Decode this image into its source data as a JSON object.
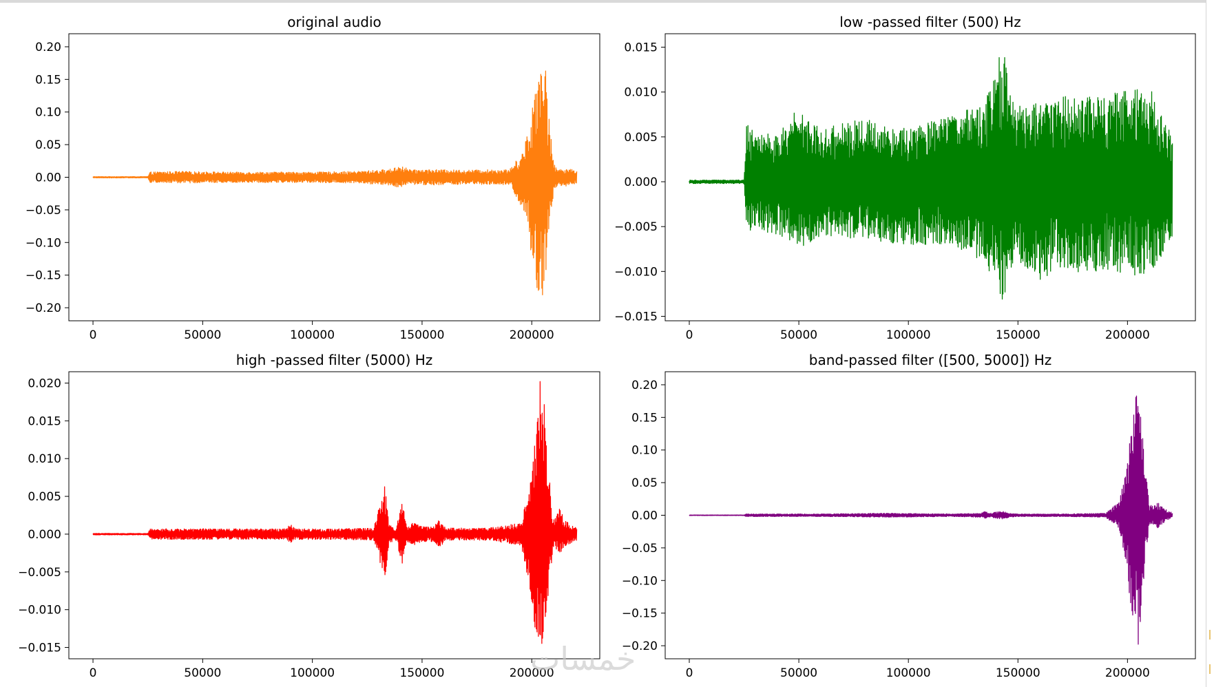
{
  "watermark": "خمسات",
  "chart_data": [
    {
      "type": "line",
      "title": "original audio",
      "color": "#ff7f0e",
      "xlim": [
        -11000,
        231000
      ],
      "ylim": [
        -0.22,
        0.22
      ],
      "xticks": [
        0,
        50000,
        100000,
        150000,
        200000
      ],
      "yticks": [
        -0.2,
        -0.15,
        -0.1,
        -0.05,
        0.0,
        0.05,
        0.1,
        0.15,
        0.2
      ],
      "ytick_labels": [
        "−0.20",
        "−0.15",
        "−0.10",
        "−0.05",
        "0.00",
        "0.05",
        "0.10",
        "0.15",
        "0.20"
      ],
      "series": [
        {
          "x": [
            0,
            25000,
            26000,
            40000,
            60000,
            80000,
            100000,
            120000,
            135000,
            140000,
            143000,
            146000,
            150000,
            170000,
            190000,
            196000,
            199000,
            202000,
            204000,
            205000,
            206000,
            208000,
            210000,
            212000,
            215000,
            218000,
            220500
          ],
          "ymax": [
            0.001,
            0.001,
            0.008,
            0.009,
            0.008,
            0.008,
            0.008,
            0.009,
            0.012,
            0.018,
            0.014,
            0.011,
            0.012,
            0.011,
            0.012,
            0.04,
            0.08,
            0.15,
            0.19,
            0.2,
            0.18,
            0.09,
            0.02,
            0.012,
            0.014,
            0.012,
            0.01
          ],
          "ymin": [
            -0.001,
            -0.001,
            -0.008,
            -0.009,
            -0.008,
            -0.008,
            -0.008,
            -0.009,
            -0.012,
            -0.016,
            -0.012,
            -0.011,
            -0.012,
            -0.011,
            -0.012,
            -0.05,
            -0.1,
            -0.18,
            -0.2,
            -0.21,
            -0.18,
            -0.09,
            -0.02,
            -0.012,
            -0.014,
            -0.012,
            -0.01
          ]
        }
      ]
    },
    {
      "type": "line",
      "title": "low -passed filter (500) Hz",
      "color": "#008000",
      "xlim": [
        -11000,
        231000
      ],
      "ylim": [
        -0.0155,
        0.0165
      ],
      "xticks": [
        0,
        50000,
        100000,
        150000,
        200000
      ],
      "yticks": [
        -0.015,
        -0.01,
        -0.005,
        0.0,
        0.005,
        0.01,
        0.015
      ],
      "ytick_labels": [
        "−0.015",
        "−0.010",
        "−0.005",
        "0.000",
        "0.005",
        "0.010",
        "0.015"
      ],
      "series": [
        {
          "x": [
            0,
            25000,
            26000,
            40000,
            50000,
            60000,
            80000,
            100000,
            120000,
            135000,
            140000,
            143000,
            146000,
            150000,
            160000,
            170000,
            180000,
            190000,
            200000,
            210000,
            220500
          ],
          "ymax": [
            0.0002,
            0.0002,
            0.0065,
            0.005,
            0.0085,
            0.006,
            0.007,
            0.006,
            0.0075,
            0.009,
            0.012,
            0.0163,
            0.01,
            0.0085,
            0.009,
            0.0095,
            0.01,
            0.0095,
            0.011,
            0.0106,
            0.005
          ],
          "ymin": [
            -0.0002,
            -0.0002,
            -0.0055,
            -0.006,
            -0.0075,
            -0.006,
            -0.0065,
            -0.007,
            -0.007,
            -0.009,
            -0.012,
            -0.014,
            -0.01,
            -0.009,
            -0.011,
            -0.0095,
            -0.0103,
            -0.0098,
            -0.0105,
            -0.0103,
            -0.0065
          ]
        }
      ]
    },
    {
      "type": "line",
      "title": "high -passed filter (5000) Hz",
      "color": "#ff0000",
      "xlim": [
        -11000,
        231000
      ],
      "ylim": [
        -0.0165,
        0.0215
      ],
      "xticks": [
        0,
        50000,
        100000,
        150000,
        200000
      ],
      "yticks": [
        -0.015,
        -0.01,
        -0.005,
        0.0,
        0.005,
        0.01,
        0.015,
        0.02
      ],
      "ytick_labels": [
        "−0.015",
        "−0.010",
        "−0.005",
        "0.000",
        "0.005",
        "0.010",
        "0.015",
        "0.020"
      ],
      "series": [
        {
          "x": [
            0,
            25000,
            26000,
            40000,
            60000,
            80000,
            88000,
            90000,
            92000,
            110000,
            128000,
            133000,
            134000,
            135000,
            138000,
            141000,
            142000,
            143000,
            146000,
            150000,
            155000,
            158000,
            161000,
            180000,
            195000,
            199000,
            202000,
            204000,
            205000,
            206000,
            208000,
            210000,
            213000,
            215000,
            218000,
            220500
          ],
          "ymax": [
            0.0001,
            0.0001,
            0.0007,
            0.0007,
            0.0007,
            0.0007,
            0.0007,
            0.0015,
            0.0007,
            0.0007,
            0.0008,
            0.0065,
            0.004,
            0.0012,
            0.0008,
            0.0045,
            0.0025,
            0.001,
            0.0015,
            0.001,
            0.001,
            0.002,
            0.0008,
            0.0008,
            0.0015,
            0.006,
            0.014,
            0.021,
            0.02,
            0.016,
            0.008,
            0.002,
            0.0035,
            0.002,
            0.0012,
            0.0008
          ],
          "ymin": [
            -0.0001,
            -0.0001,
            -0.0007,
            -0.0007,
            -0.0007,
            -0.0007,
            -0.0007,
            -0.0012,
            -0.0007,
            -0.0007,
            -0.0008,
            -0.006,
            -0.004,
            -0.0012,
            -0.0008,
            -0.004,
            -0.0022,
            -0.001,
            -0.0015,
            -0.001,
            -0.001,
            -0.0018,
            -0.0008,
            -0.0008,
            -0.0015,
            -0.007,
            -0.014,
            -0.0148,
            -0.0145,
            -0.012,
            -0.007,
            -0.002,
            -0.0025,
            -0.002,
            -0.0012,
            -0.0008
          ]
        }
      ]
    },
    {
      "type": "line",
      "title": "band-passed filter ([500, 5000]) Hz",
      "color": "#800080",
      "xlim": [
        -11000,
        231000
      ],
      "ylim": [
        -0.22,
        0.22
      ],
      "xticks": [
        0,
        50000,
        100000,
        150000,
        200000
      ],
      "yticks": [
        -0.2,
        -0.15,
        -0.1,
        -0.05,
        0.0,
        0.05,
        0.1,
        0.15,
        0.2
      ],
      "ytick_labels": [
        "−0.20",
        "−0.15",
        "−0.10",
        "−0.05",
        "0.00",
        "0.05",
        "0.10",
        "0.15",
        "0.20"
      ],
      "series": [
        {
          "x": [
            0,
            25000,
            26000,
            60000,
            90000,
            120000,
            133000,
            135000,
            137000,
            140000,
            143000,
            146000,
            150000,
            170000,
            190000,
            196000,
            199000,
            202000,
            204000,
            205000,
            206000,
            208000,
            210000,
            212000,
            214000,
            217000,
            220500
          ],
          "ymax": [
            0.0005,
            0.0005,
            0.002,
            0.002,
            0.003,
            0.002,
            0.003,
            0.006,
            0.003,
            0.005,
            0.006,
            0.003,
            0.002,
            0.002,
            0.003,
            0.02,
            0.06,
            0.14,
            0.19,
            0.2,
            0.17,
            0.08,
            0.015,
            0.015,
            0.02,
            0.01,
            0.004
          ],
          "ymin": [
            -0.0005,
            -0.0005,
            -0.002,
            -0.002,
            -0.003,
            -0.002,
            -0.003,
            -0.005,
            -0.003,
            -0.005,
            -0.006,
            -0.003,
            -0.002,
            -0.002,
            -0.003,
            -0.02,
            -0.07,
            -0.16,
            -0.2,
            -0.2,
            -0.16,
            -0.08,
            -0.015,
            -0.015,
            -0.02,
            -0.01,
            -0.004
          ]
        }
      ]
    }
  ]
}
